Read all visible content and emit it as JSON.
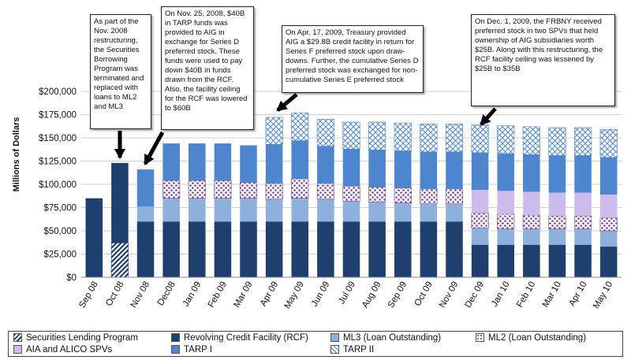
{
  "chart_data": {
    "type": "bar",
    "stacked": true,
    "title": "",
    "xlabel": "",
    "ylabel": "Millions of Dollars",
    "ylim": [
      0,
      200000
    ],
    "y_ticks": [
      "$0",
      "$25,000",
      "$50,000",
      "$75,000",
      "$100,000",
      "$125,000",
      "$150,000",
      "$175,000",
      "$200,000"
    ],
    "y_tick_values": [
      0,
      25000,
      50000,
      75000,
      100000,
      125000,
      150000,
      175000,
      200000
    ],
    "grid": true,
    "legend_position": "bottom",
    "categories": [
      "Sep 08",
      "Oct 08",
      "Nov 08",
      "Dec08",
      "Jan 09",
      "Feb 09",
      "Mar 09",
      "Apr 09",
      "May 09",
      "Jun 09",
      "Jul 09",
      "Aug 09",
      "Sep 09",
      "Oct 09",
      "Nov 09",
      "Dec 09",
      "Jan 10",
      "Feb 10",
      "Mar 10",
      "Apr 10",
      "May 10"
    ],
    "series": [
      {
        "name": "Securities Lending Program",
        "color": "#1f3f6f",
        "pattern": "diagonal",
        "values": [
          0,
          37000,
          0,
          0,
          0,
          0,
          0,
          0,
          0,
          0,
          0,
          0,
          0,
          0,
          0,
          0,
          0,
          0,
          0,
          0,
          0
        ]
      },
      {
        "name": "Revolving Credit Facility (RCF)",
        "color": "#1f3f6f",
        "pattern": "solid",
        "values": [
          85000,
          86000,
          60000,
          60000,
          60000,
          60000,
          60000,
          60000,
          60000,
          60000,
          60000,
          60000,
          60000,
          60000,
          60000,
          35000,
          35000,
          35000,
          35000,
          35000,
          33000
        ]
      },
      {
        "name": "ML3 (Loan Outstanding)",
        "color": "#8db0dc",
        "pattern": "solid",
        "values": [
          0,
          0,
          16000,
          25000,
          25000,
          25000,
          25000,
          24000,
          25000,
          24000,
          22000,
          21000,
          20000,
          19000,
          19000,
          18000,
          17000,
          17000,
          17000,
          17000,
          17000
        ]
      },
      {
        "name": "ML2 (Loan Outstanding)",
        "color": "#7b3fa0",
        "pattern": "dots",
        "values": [
          0,
          0,
          0,
          19000,
          19000,
          19000,
          17000,
          17000,
          21000,
          17000,
          16000,
          16000,
          16000,
          16000,
          16000,
          16000,
          16000,
          15000,
          14000,
          14000,
          14000
        ]
      },
      {
        "name": "AIA and ALICO SPVs",
        "color": "#cdbbec",
        "pattern": "solid",
        "values": [
          0,
          0,
          0,
          0,
          0,
          0,
          0,
          0,
          0,
          0,
          0,
          0,
          0,
          0,
          0,
          25000,
          25000,
          25000,
          25000,
          25000,
          25000
        ]
      },
      {
        "name": "TARP I",
        "color": "#4d86cf",
        "pattern": "solid",
        "values": [
          0,
          0,
          40000,
          40000,
          40000,
          40000,
          40000,
          42000,
          41000,
          40000,
          40000,
          40000,
          40000,
          40000,
          40000,
          40000,
          40000,
          40000,
          40000,
          40000,
          40000
        ]
      },
      {
        "name": "TARP II",
        "color": "#4d86cf",
        "pattern": "cross",
        "values": [
          0,
          0,
          0,
          0,
          0,
          0,
          0,
          29000,
          30000,
          29000,
          29000,
          30000,
          30000,
          30000,
          30000,
          30000,
          30000,
          30000,
          30000,
          30000,
          30000
        ]
      }
    ],
    "annotations": [
      {
        "text": "As part of the Nov. 2008 restructuring, the Securities Borrowing Program was terminated and replaced with loans to ML2 and ML3",
        "target": "Oct 08"
      },
      {
        "text": "On Nov. 25, 2008, $40B in TARP funds was provided to AIG in exchange for Series D preferred stock.  These funds were used to pay down $40B in funds drawn from the RCF.  Also, the facility ceiling for the RCF was lowered to $60B",
        "target": "Nov 08"
      },
      {
        "text": "On Apr. 17, 2009, Treasury provided AIG a $29.8B credit facility in return for Series F preferred stock upon draw-downs. Further, the cumulative Series D preferred stock was exchanged for non-cumulative Series E preferred stock",
        "target": "Apr 09"
      },
      {
        "text": "On Dec. 1, 2009, the FRBNY received preferred stock in two SPVs that held ownership of AIG subsidiaries worth $25B.  Along with this restructuring, the RCF facility ceiling was lessened by $25B to $35B",
        "target": "Dec 09"
      }
    ]
  }
}
